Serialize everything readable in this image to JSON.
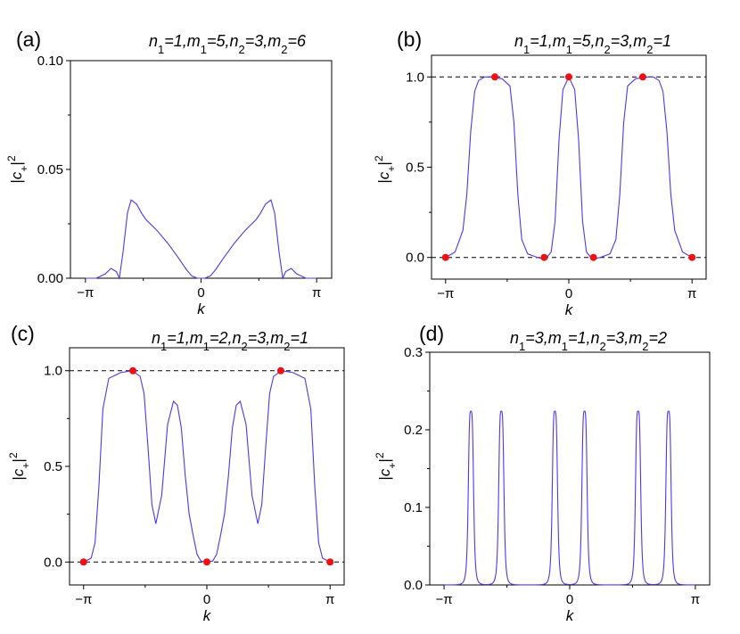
{
  "chart_data": [
    {
      "type": "line",
      "panel_label": "(a)",
      "title_parts": [
        {
          "t": "n",
          "i": true
        },
        {
          "t": "1",
          "s": true
        },
        {
          "t": "=1,",
          "i": true
        },
        {
          "t": "m",
          "i": true
        },
        {
          "t": "1",
          "s": true
        },
        {
          "t": "=5,",
          "i": true
        },
        {
          "t": "n",
          "i": true
        },
        {
          "t": "2",
          "s": true
        },
        {
          "t": "=3,",
          "i": true
        },
        {
          "t": "m",
          "i": true
        },
        {
          "t": "2",
          "s": true
        },
        {
          "t": "=6",
          "i": true
        }
      ],
      "xlabel": "k",
      "ylabel_parts": [
        {
          "t": "|"
        },
        {
          "t": "c",
          "i": true
        },
        {
          "t": "+",
          "sub": true
        },
        {
          "t": "|"
        },
        {
          "t": "2",
          "sup": true
        }
      ],
      "xlim": [
        -3.55,
        3.55
      ],
      "ylim": [
        0,
        0.1
      ],
      "xticks": [
        {
          "v": -3.14159,
          "label": "−π"
        },
        {
          "v": 0,
          "label": "0"
        },
        {
          "v": 3.14159,
          "label": "π"
        }
      ],
      "yticks": [
        {
          "v": 0,
          "label": "0.00"
        },
        {
          "v": 0.05,
          "label": "0.05"
        },
        {
          "v": 0.1,
          "label": "0.10"
        }
      ],
      "hlines": [],
      "series": [
        {
          "color": "#5533ee",
          "x": [
            -3.14,
            -2.85,
            -2.6,
            -2.45,
            -2.3,
            -2.22,
            -2.12,
            -2.0,
            -1.9,
            -1.75,
            -1.62,
            -1.5,
            -1.2,
            -0.9,
            -0.6,
            -0.4,
            -0.25,
            -0.1,
            0,
            0.1,
            0.25,
            0.4,
            0.6,
            0.9,
            1.2,
            1.5,
            1.62,
            1.75,
            1.9,
            2.0,
            2.12,
            2.22,
            2.3,
            2.45,
            2.6,
            2.85,
            3.14
          ],
          "y": [
            0,
            0,
            0.002,
            0.0045,
            0.003,
            0,
            0.012,
            0.03,
            0.036,
            0.034,
            0.03,
            0.027,
            0.022,
            0.016,
            0.009,
            0.004,
            0.001,
            0,
            0,
            0,
            0.001,
            0.004,
            0.009,
            0.016,
            0.022,
            0.027,
            0.03,
            0.034,
            0.036,
            0.03,
            0.012,
            0,
            0.003,
            0.0045,
            0.002,
            0,
            0
          ]
        }
      ],
      "markers": []
    },
    {
      "type": "line",
      "panel_label": "(b)",
      "title_parts": [
        {
          "t": "n",
          "i": true
        },
        {
          "t": "1",
          "s": true
        },
        {
          "t": "=1,",
          "i": true
        },
        {
          "t": "m",
          "i": true
        },
        {
          "t": "1",
          "s": true
        },
        {
          "t": "=5,",
          "i": true
        },
        {
          "t": "n",
          "i": true
        },
        {
          "t": "2",
          "s": true
        },
        {
          "t": "=3,",
          "i": true
        },
        {
          "t": "m",
          "i": true
        },
        {
          "t": "2",
          "s": true
        },
        {
          "t": "=1",
          "i": true
        }
      ],
      "xlabel": "k",
      "ylabel_parts": [
        {
          "t": "|"
        },
        {
          "t": "c",
          "i": true
        },
        {
          "t": "+",
          "sub": true
        },
        {
          "t": "|"
        },
        {
          "t": "2",
          "sup": true
        }
      ],
      "xlim": [
        -3.5,
        3.5
      ],
      "ylim": [
        -0.12,
        1.12
      ],
      "xticks": [
        {
          "v": -3.14159,
          "label": "−π"
        },
        {
          "v": 0,
          "label": "0"
        },
        {
          "v": 3.14159,
          "label": "π"
        }
      ],
      "yticks": [
        {
          "v": 0,
          "label": "0.0"
        },
        {
          "v": 0.5,
          "label": "0.5"
        },
        {
          "v": 1.0,
          "label": "1.0"
        }
      ],
      "hlines": [
        0,
        1
      ],
      "series": [
        {
          "color": "#5533ee",
          "x": [
            -3.14,
            -2.9,
            -2.7,
            -2.6,
            -2.5,
            -2.4,
            -2.3,
            -2.15,
            -2.0,
            -1.7,
            -1.5,
            -1.4,
            -1.3,
            -1.2,
            -1.05,
            -0.8,
            -0.6,
            -0.45,
            -0.35,
            -0.25,
            -0.15,
            0,
            0.15,
            0.25,
            0.35,
            0.45,
            0.6,
            0.8,
            1.05,
            1.2,
            1.3,
            1.4,
            1.5,
            1.7,
            2.0,
            2.15,
            2.3,
            2.4,
            2.5,
            2.6,
            2.7,
            2.9,
            3.14
          ],
          "y": [
            0,
            0.03,
            0.15,
            0.35,
            0.7,
            0.92,
            0.98,
            1.0,
            1.0,
            0.99,
            0.95,
            0.75,
            0.35,
            0.1,
            0.02,
            0.0,
            -0.01,
            0.03,
            0.2,
            0.65,
            0.93,
            1.0,
            0.93,
            0.65,
            0.2,
            0.03,
            -0.01,
            0.0,
            0.02,
            0.1,
            0.35,
            0.75,
            0.95,
            0.99,
            1.0,
            1.0,
            0.98,
            0.92,
            0.7,
            0.35,
            0.15,
            0.03,
            0
          ]
        }
      ],
      "markers": [
        {
          "x": -3.14159,
          "y": 0
        },
        {
          "x": -1.885,
          "y": 1
        },
        {
          "x": -0.628,
          "y": 0
        },
        {
          "x": 0,
          "y": 1
        },
        {
          "x": 0.628,
          "y": 0
        },
        {
          "x": 1.885,
          "y": 1
        },
        {
          "x": 3.14159,
          "y": 0
        }
      ]
    },
    {
      "type": "line",
      "panel_label": "(c)",
      "title_parts": [
        {
          "t": "n",
          "i": true
        },
        {
          "t": "1",
          "s": true
        },
        {
          "t": "=1,",
          "i": true
        },
        {
          "t": "m",
          "i": true
        },
        {
          "t": "1",
          "s": true
        },
        {
          "t": "=2,",
          "i": true
        },
        {
          "t": "n",
          "i": true
        },
        {
          "t": "2",
          "s": true
        },
        {
          "t": "=3,",
          "i": true
        },
        {
          "t": "m",
          "i": true
        },
        {
          "t": "2",
          "s": true
        },
        {
          "t": "=1",
          "i": true
        }
      ],
      "xlabel": "k",
      "ylabel_parts": [
        {
          "t": "|"
        },
        {
          "t": "c",
          "i": true
        },
        {
          "t": "+",
          "sub": true
        },
        {
          "t": "|"
        },
        {
          "t": "2",
          "sup": true
        }
      ],
      "xlim": [
        -3.5,
        3.5
      ],
      "ylim": [
        -0.12,
        1.12
      ],
      "xticks": [
        {
          "v": -3.14159,
          "label": "−π"
        },
        {
          "v": 0,
          "label": "0"
        },
        {
          "v": 3.14159,
          "label": "π"
        }
      ],
      "yticks": [
        {
          "v": 0,
          "label": "0.0"
        },
        {
          "v": 0.5,
          "label": "0.5"
        },
        {
          "v": 1.0,
          "label": "1.0"
        }
      ],
      "hlines": [
        0,
        1
      ],
      "series": [
        {
          "color": "#5533ee",
          "x": [
            -3.14,
            -2.95,
            -2.85,
            -2.75,
            -2.65,
            -2.5,
            -2.2,
            -1.9,
            -1.7,
            -1.6,
            -1.5,
            -1.4,
            -1.3,
            -1.15,
            -1.0,
            -0.85,
            -0.75,
            -0.65,
            -0.55,
            -0.45,
            -0.35,
            -0.25,
            -0.15,
            0,
            0.15,
            0.25,
            0.35,
            0.45,
            0.55,
            0.65,
            0.75,
            0.85,
            1.0,
            1.15,
            1.3,
            1.4,
            1.5,
            1.6,
            1.7,
            1.9,
            2.2,
            2.5,
            2.65,
            2.75,
            2.85,
            2.95,
            3.14
          ],
          "y": [
            0,
            0.02,
            0.1,
            0.4,
            0.8,
            0.96,
            0.99,
            1.0,
            0.97,
            0.88,
            0.6,
            0.3,
            0.2,
            0.35,
            0.72,
            0.84,
            0.82,
            0.7,
            0.45,
            0.25,
            0.14,
            0.04,
            0.005,
            0,
            0.005,
            0.04,
            0.14,
            0.25,
            0.45,
            0.7,
            0.82,
            0.84,
            0.72,
            0.35,
            0.2,
            0.3,
            0.6,
            0.88,
            0.97,
            1.0,
            0.99,
            0.96,
            0.8,
            0.4,
            0.1,
            0.02,
            0
          ]
        }
      ],
      "markers": [
        {
          "x": -3.14159,
          "y": 0
        },
        {
          "x": -1.885,
          "y": 1
        },
        {
          "x": 0,
          "y": 0
        },
        {
          "x": 1.885,
          "y": 1
        },
        {
          "x": 3.14159,
          "y": 0
        }
      ]
    },
    {
      "type": "line",
      "panel_label": "(d)",
      "title_parts": [
        {
          "t": "n",
          "i": true
        },
        {
          "t": "1",
          "s": true
        },
        {
          "t": "=3,",
          "i": true
        },
        {
          "t": "m",
          "i": true
        },
        {
          "t": "1",
          "s": true
        },
        {
          "t": "=1,",
          "i": true
        },
        {
          "t": "n",
          "i": true
        },
        {
          "t": "2",
          "s": true
        },
        {
          "t": "=3,",
          "i": true
        },
        {
          "t": "m",
          "i": true
        },
        {
          "t": "2",
          "s": true
        },
        {
          "t": "=2",
          "i": true
        }
      ],
      "xlabel": "k",
      "ylabel_parts": [
        {
          "t": "|"
        },
        {
          "t": "c",
          "i": true
        },
        {
          "t": "+",
          "sub": true
        },
        {
          "t": "|"
        },
        {
          "t": "2",
          "sup": true
        }
      ],
      "xlim": [
        -3.5,
        3.5
      ],
      "ylim": [
        0,
        0.3
      ],
      "xticks": [
        {
          "v": -3.14159,
          "label": "−π"
        },
        {
          "v": 0,
          "label": "0"
        },
        {
          "v": 3.14159,
          "label": "π"
        }
      ],
      "yticks": [
        {
          "v": 0,
          "label": "0.0"
        },
        {
          "v": 0.1,
          "label": "0.1"
        },
        {
          "v": 0.2,
          "label": "0.2"
        },
        {
          "v": 0.3,
          "label": "0.3"
        }
      ],
      "hlines": [],
      "peaks": {
        "centers": [
          -2.47,
          -1.71,
          -0.37,
          0.37,
          1.71,
          2.47
        ],
        "height": 0.224,
        "width": 0.07
      },
      "series": [
        {
          "color": "#5533ee"
        }
      ],
      "markers": []
    }
  ]
}
